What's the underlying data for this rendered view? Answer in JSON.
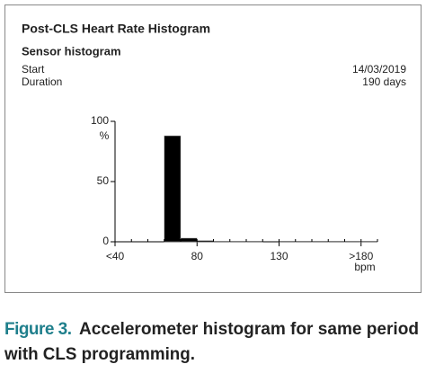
{
  "chart_data": {
    "type": "histogram",
    "title": "Post-CLS Heart Rate Histogram",
    "subtitle": "Sensor histogram",
    "info": [
      {
        "label": "Start",
        "value": "14/03/2019"
      },
      {
        "label": "Duration",
        "value": "190 days"
      }
    ],
    "bins": [
      30,
      40,
      50,
      60,
      70,
      80,
      90,
      100,
      110,
      120,
      130,
      140,
      150,
      160,
      170,
      180,
      190
    ],
    "counts": [
      0,
      0,
      0,
      88,
      3,
      1,
      0.5,
      0.5,
      0.5,
      0,
      0.5,
      0.5,
      0.5,
      0.5,
      0.5,
      0.5
    ],
    "color": "#000000",
    "xlim": [
      30,
      190
    ],
    "xticks": [
      {
        "value": 30,
        "label": "<40"
      },
      80,
      130,
      {
        "value": 180,
        "label": ">180"
      }
    ],
    "ylim": [
      0,
      100
    ],
    "yticks": [
      0,
      50,
      100
    ],
    "y_label": "%",
    "x_label": "bpm"
  },
  "caption": {
    "label": "Figure 3.",
    "lines": [
      "Accelerometer histogram for same period",
      "with CLS programming."
    ]
  }
}
